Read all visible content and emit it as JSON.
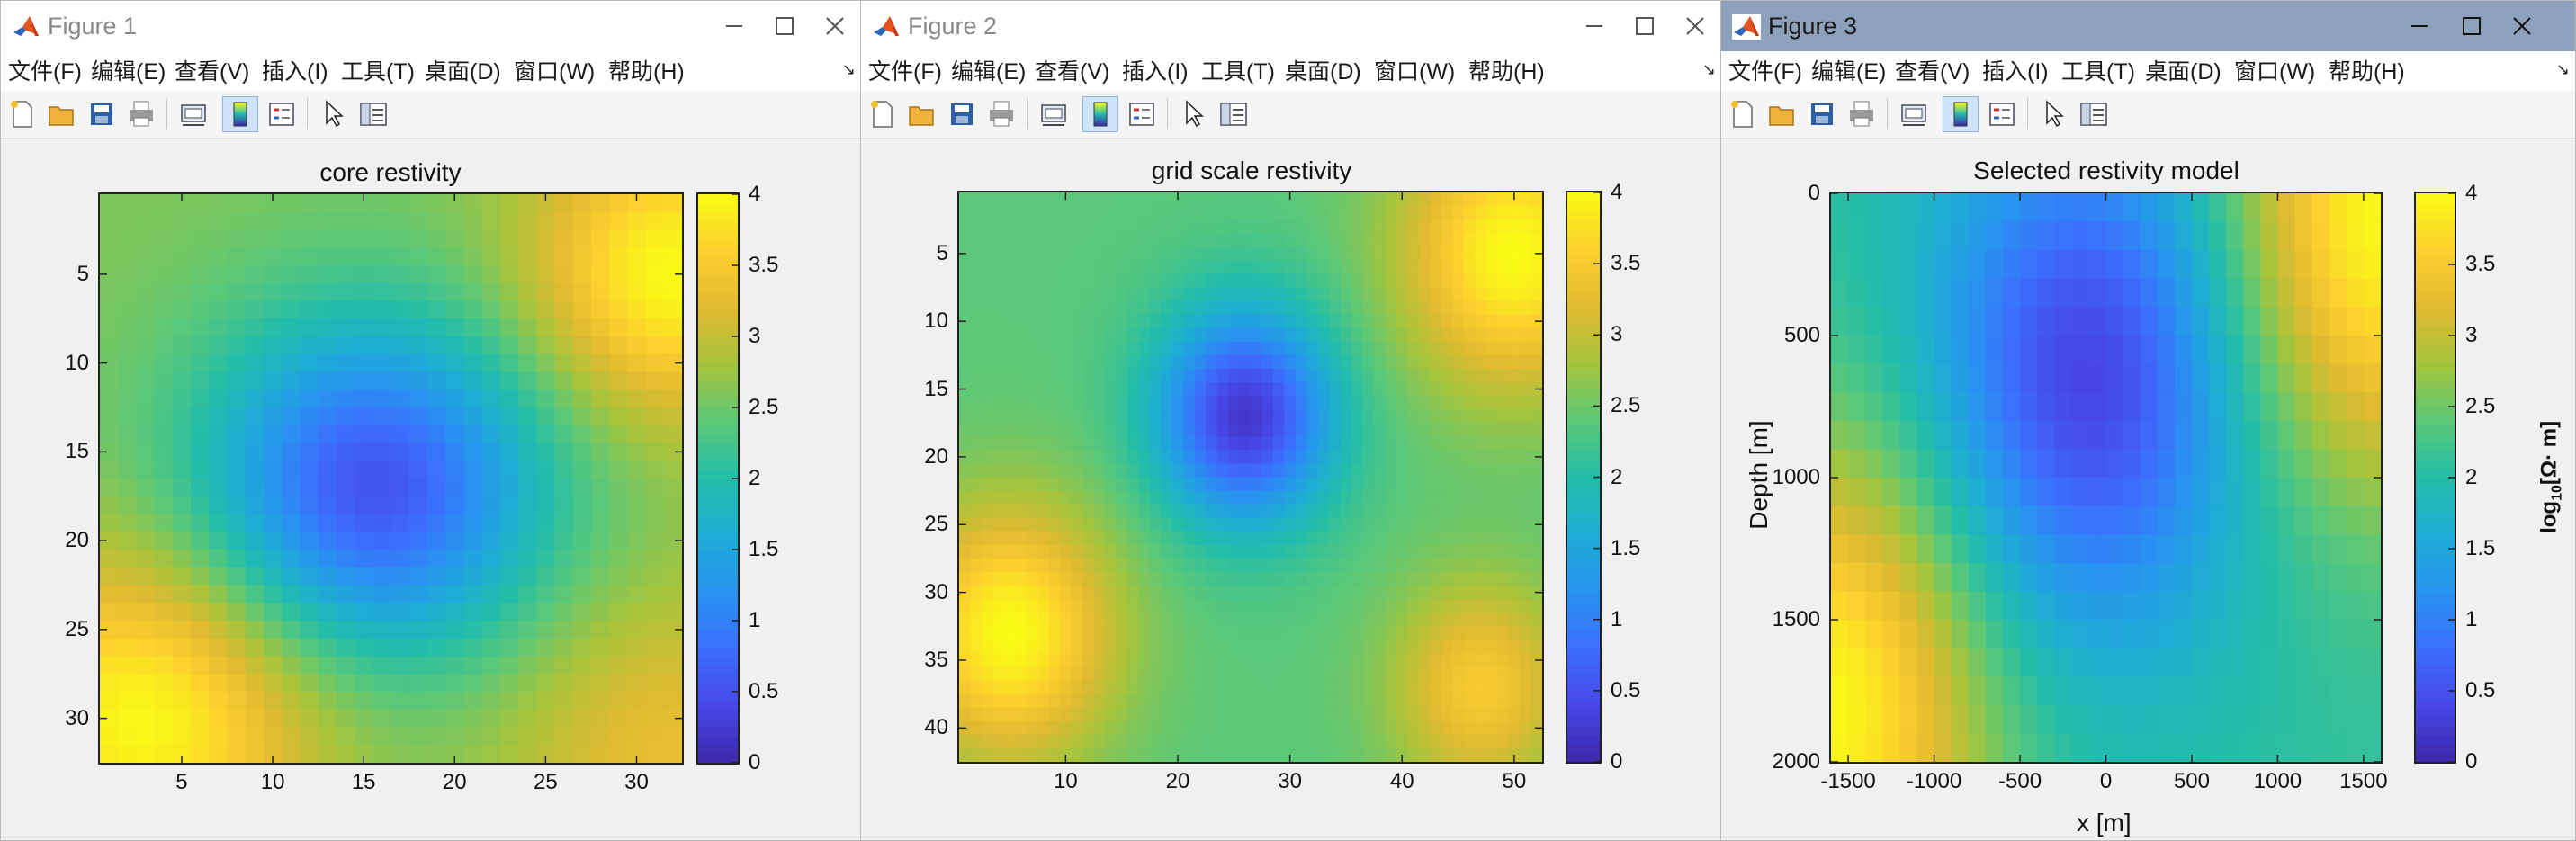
{
  "colors": {
    "accent_title_active": "#8da1bd",
    "parula_low": "#3e26a8",
    "parula_high": "#f9fb15"
  },
  "menu_labels": [
    "文件(F)",
    "编辑(E)",
    "查看(V)",
    "插入(I)",
    "工具(T)",
    "桌面(D)",
    "窗口(W)",
    "帮助(H)"
  ],
  "toolbar_icons": [
    "new-figure-icon",
    "open-file-icon",
    "save-icon",
    "print-icon",
    "link-plot-icon",
    "colorbar-icon",
    "legend-icon",
    "select-arrow-icon",
    "property-inspector-icon"
  ],
  "figures": [
    {
      "title": "Figure 1",
      "active": false,
      "chart_data": {
        "type": "heatmap",
        "title": "core restivity",
        "xlabel": "",
        "ylabel": "",
        "x_ticks": [
          "5",
          "10",
          "15",
          "20",
          "25",
          "30"
        ],
        "y_ticks": [
          "5",
          "10",
          "15",
          "20",
          "25",
          "30"
        ],
        "xlim": [
          0.5,
          32.5
        ],
        "ylim": [
          0.5,
          32.5
        ],
        "grid_size": [
          32,
          32
        ],
        "colormap": "parula",
        "clim": [
          0,
          4
        ],
        "colorbar_ticks": [
          "0",
          "0.5",
          "1",
          "1.5",
          "2",
          "2.5",
          "3",
          "3.5",
          "4"
        ],
        "colorbar_label": "",
        "features": [
          {
            "kind": "low",
            "x": 15.5,
            "y": 17,
            "value": 0.5
          },
          {
            "kind": "high",
            "x": 32,
            "y": 5,
            "value": 4
          },
          {
            "kind": "high",
            "x": 3,
            "y": 30,
            "value": 4
          },
          {
            "kind": "high",
            "x": 32,
            "y": 32,
            "value": 3.3
          }
        ],
        "background_value": 2.6
      }
    },
    {
      "title": "Figure 2",
      "active": false,
      "chart_data": {
        "type": "heatmap",
        "title": "grid scale restivity",
        "xlabel": "",
        "ylabel": "",
        "x_ticks": [
          "10",
          "20",
          "30",
          "40",
          "50"
        ],
        "y_ticks": [
          "5",
          "10",
          "15",
          "20",
          "25",
          "30",
          "35",
          "40"
        ],
        "xlim": [
          0.5,
          52.5
        ],
        "ylim": [
          0.5,
          42.5
        ],
        "grid_size": [
          52,
          42
        ],
        "colormap": "parula",
        "clim": [
          0,
          4
        ],
        "colorbar_ticks": [
          "0",
          "0.5",
          "1",
          "1.5",
          "2",
          "2.5",
          "3",
          "3.5",
          "4"
        ],
        "colorbar_label": "",
        "features": [
          {
            "kind": "low",
            "x": 26,
            "y": 17,
            "value": 0.2
          },
          {
            "kind": "high",
            "x": 50,
            "y": 5,
            "value": 4
          },
          {
            "kind": "high",
            "x": 5,
            "y": 33,
            "value": 4
          },
          {
            "kind": "high",
            "x": 47,
            "y": 37,
            "value": 3.5
          }
        ],
        "background_value": 2.4
      }
    },
    {
      "title": "Figure 3",
      "active": true,
      "chart_data": {
        "type": "heatmap",
        "title": "Selected restivity model",
        "xlabel": "x [m]",
        "ylabel": "Depth [m]",
        "x_ticks": [
          "-1500",
          "-1000",
          "-500",
          "0",
          "500",
          "1000",
          "1500"
        ],
        "y_ticks": [
          "0",
          "500",
          "1000",
          "1500",
          "2000"
        ],
        "xlim": [
          -1600,
          1600
        ],
        "ylim": [
          0,
          2000
        ],
        "grid_size": [
          32,
          20
        ],
        "colormap": "parula",
        "clim": [
          0,
          4
        ],
        "colorbar_ticks": [
          "0",
          "0.5",
          "1",
          "1.5",
          "2",
          "2.5",
          "3",
          "3.5",
          "4"
        ],
        "colorbar_label": "log10[Ω· m]",
        "features": [
          {
            "kind": "low",
            "x": -100,
            "y": 650,
            "value": 0.3
          },
          {
            "kind": "high",
            "x": 1600,
            "y": 100,
            "value": 4
          },
          {
            "kind": "high",
            "x": -1600,
            "y": 1800,
            "value": 4
          }
        ],
        "background_value": 2.1
      }
    }
  ]
}
